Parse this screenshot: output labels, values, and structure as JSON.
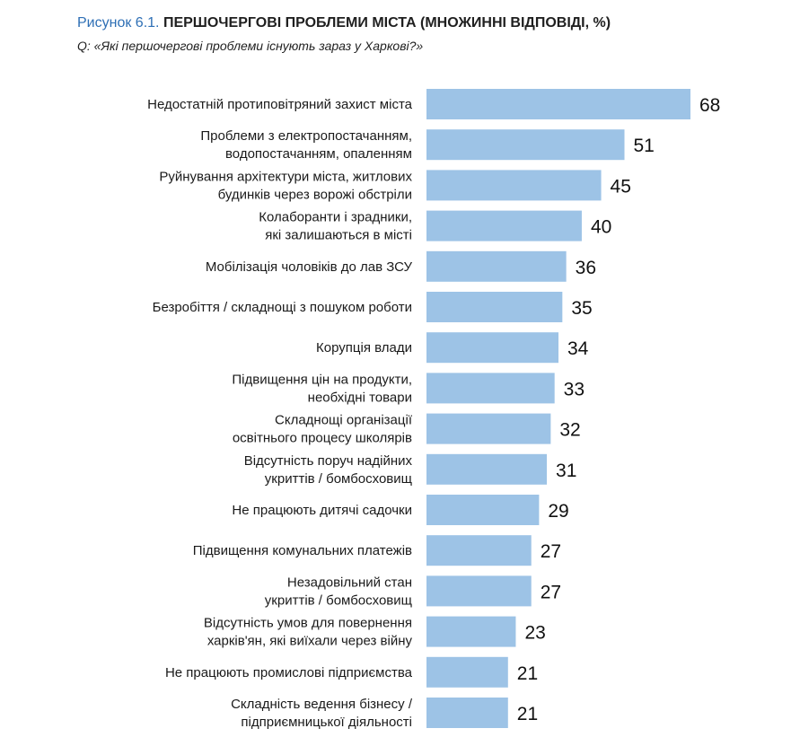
{
  "figure": {
    "number": "Рисунок 6.1.",
    "title": "ПЕРШОЧЕРГОВІ ПРОБЛЕМИ МІСТА (МНОЖИННІ ВІДПОВІДІ, %)",
    "question": "Q: «Які першочергові проблеми існують зараз у Харкові?»"
  },
  "chart_data": {
    "type": "bar",
    "orientation": "horizontal",
    "categories": [
      [
        "Недостатній протиповітряний захист міста"
      ],
      [
        "Проблеми з електропостачанням,",
        "водопостачанням,  опаленням"
      ],
      [
        "Руйнування архітектури міста, житлових",
        "будинків через ворожі обстріли"
      ],
      [
        "Колаборанти і зрадники,",
        "які залишаються в місті"
      ],
      [
        "Мобілізація чоловіків до лав ЗСУ"
      ],
      [
        "Безробіття / складнощі з пошуком роботи"
      ],
      [
        "Корупція влади"
      ],
      [
        "Підвищення цін на продукти,",
        "необхідні товари"
      ],
      [
        "Складнощі організації",
        "освітнього процесу школярів"
      ],
      [
        "Відсутність поруч надійних",
        "укриттів / бомбосховищ"
      ],
      [
        "Не працюють дитячі садочки"
      ],
      [
        "Підвищення комунальних платежів"
      ],
      [
        "Незадовільний стан",
        "укриттів / бомбосховищ"
      ],
      [
        "Відсутність умов для повернення",
        "харків'ян, які виїхали через війну"
      ],
      [
        "Не працюють промислові підприємства"
      ],
      [
        "Складність ведення бізнесу /",
        "підприємницької діяльності"
      ]
    ],
    "values": [
      68,
      51,
      45,
      40,
      36,
      35,
      34,
      33,
      32,
      31,
      29,
      27,
      27,
      23,
      21,
      21
    ],
    "bar_color": "#9dc3e6",
    "title_number_color": "#2e6fb5",
    "xlim": [
      0,
      68
    ],
    "grid": false,
    "legend": "none"
  }
}
